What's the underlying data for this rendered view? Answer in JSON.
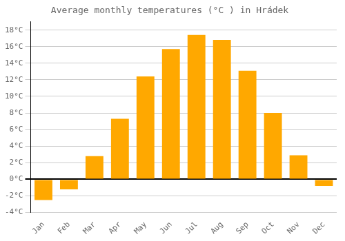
{
  "chart_data": {
    "type": "bar",
    "title": "Average monthly temperatures (°C ) in Hrádek",
    "categories": [
      "Jan",
      "Feb",
      "Mar",
      "Apr",
      "May",
      "Jun",
      "Jul",
      "Aug",
      "Sep",
      "Oct",
      "Nov",
      "Dec"
    ],
    "values": [
      -2.5,
      -1.2,
      2.8,
      7.3,
      12.4,
      15.7,
      17.4,
      16.8,
      13.1,
      8.0,
      2.9,
      -0.8
    ],
    "color": "#FFA800",
    "ylim": [
      -4,
      19
    ],
    "yticks": [
      {
        "value": -4,
        "label": "-4°C"
      },
      {
        "value": -2,
        "label": "-2°C"
      },
      {
        "value": 0,
        "label": "0°C"
      },
      {
        "value": 2,
        "label": "2°C"
      },
      {
        "value": 4,
        "label": "4°C"
      },
      {
        "value": 6,
        "label": "6°C"
      },
      {
        "value": 8,
        "label": "8°C"
      },
      {
        "value": 10,
        "label": "10°C"
      },
      {
        "value": 12,
        "label": "12°C"
      },
      {
        "value": 14,
        "label": "14°C"
      },
      {
        "value": 16,
        "label": "16°C"
      },
      {
        "value": 18,
        "label": "18°C"
      }
    ],
    "grid": true
  }
}
